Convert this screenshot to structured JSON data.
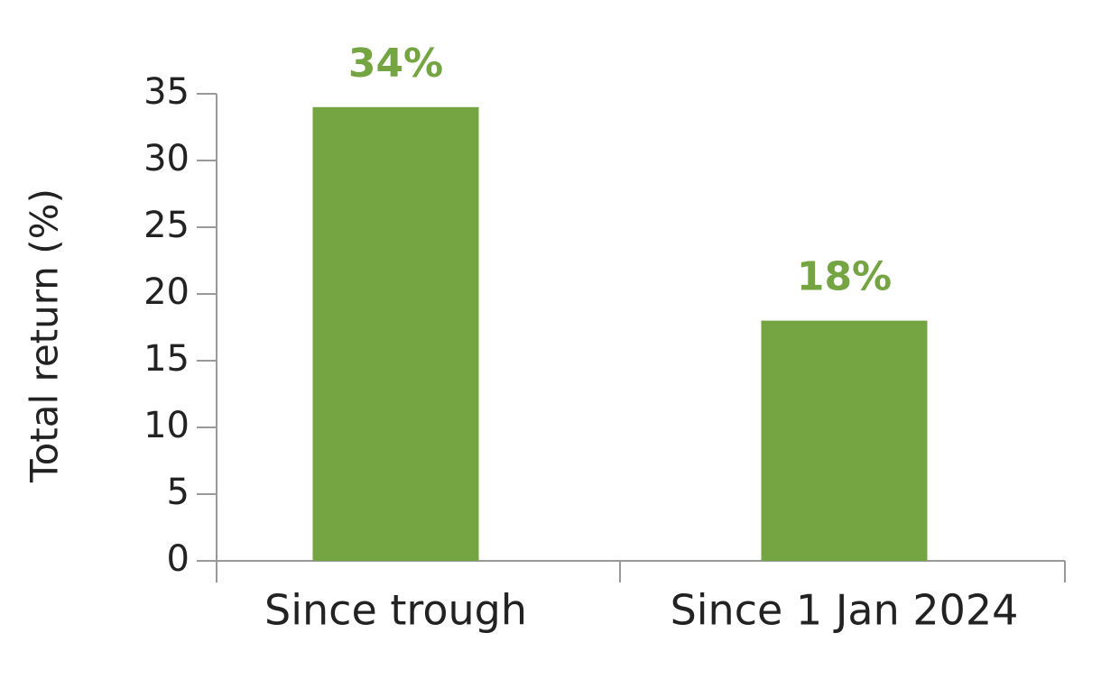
{
  "chart_data": {
    "type": "bar",
    "y_label": "Total return (%)",
    "categories": [
      "Since trough",
      "Since 1 Jan 2024"
    ],
    "values": [
      34,
      18
    ],
    "value_labels": [
      "34%",
      "18%"
    ],
    "color": "#74a542",
    "ylim": [
      0,
      35
    ],
    "yticks": [
      0,
      5,
      10,
      15,
      20,
      25,
      30,
      35
    ]
  }
}
